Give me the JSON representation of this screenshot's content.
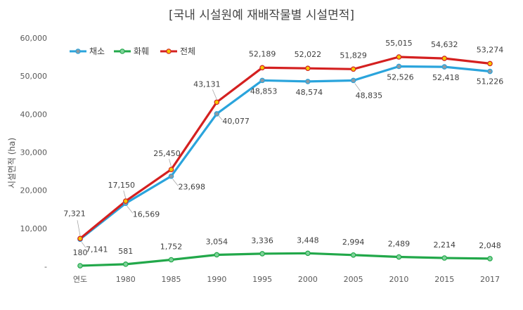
{
  "chart_data": {
    "type": "line",
    "title": "[국내 시설원예 재배작물별 시설면적]",
    "ylabel": "시설면적 (ha)",
    "categories": [
      "연도",
      "1980",
      "1985",
      "1990",
      "1995",
      "2000",
      "2005",
      "2010",
      "2015",
      "2017"
    ],
    "ylim": [
      0,
      60000
    ],
    "yticks": [
      0,
      10000,
      20000,
      30000,
      40000,
      50000,
      60000
    ],
    "ytick_labels": [
      "-",
      "10,000",
      "20,000",
      "30,000",
      "40,000",
      "50,000",
      "60,000"
    ],
    "grid": false,
    "legend_position": "top-left",
    "series": [
      {
        "name": "채소",
        "color": "#2aa4dc",
        "marker_color": "#8d9aa3",
        "values": [
          7141,
          16569,
          23698,
          40077,
          48853,
          48574,
          48835,
          52526,
          52418,
          51226
        ],
        "labels": [
          "7,141",
          "16,569",
          "23,698",
          "40,077",
          "48,853",
          "48,574",
          "48,835",
          "52,526",
          "52,418",
          "51,226"
        ]
      },
      {
        "name": "화훼",
        "color": "#22a84a",
        "marker_color": "#7fd39a",
        "values": [
          180,
          581,
          1752,
          3054,
          3336,
          3448,
          2994,
          2489,
          2214,
          2048
        ],
        "labels": [
          "180",
          "581",
          "1,752",
          "3,054",
          "3,336",
          "3,448",
          "2,994",
          "2,489",
          "2,214",
          "2,048"
        ]
      },
      {
        "name": "전체",
        "color": "#d42020",
        "marker_color": "#f5c800",
        "values": [
          7321,
          17150,
          25450,
          43131,
          52189,
          52022,
          51829,
          55015,
          54632,
          53274
        ],
        "labels": [
          "7,321",
          "17,150",
          "25,450",
          "43,131",
          "52,189",
          "52,022",
          "51,829",
          "55,015",
          "54,632",
          "53,274"
        ]
      }
    ]
  }
}
